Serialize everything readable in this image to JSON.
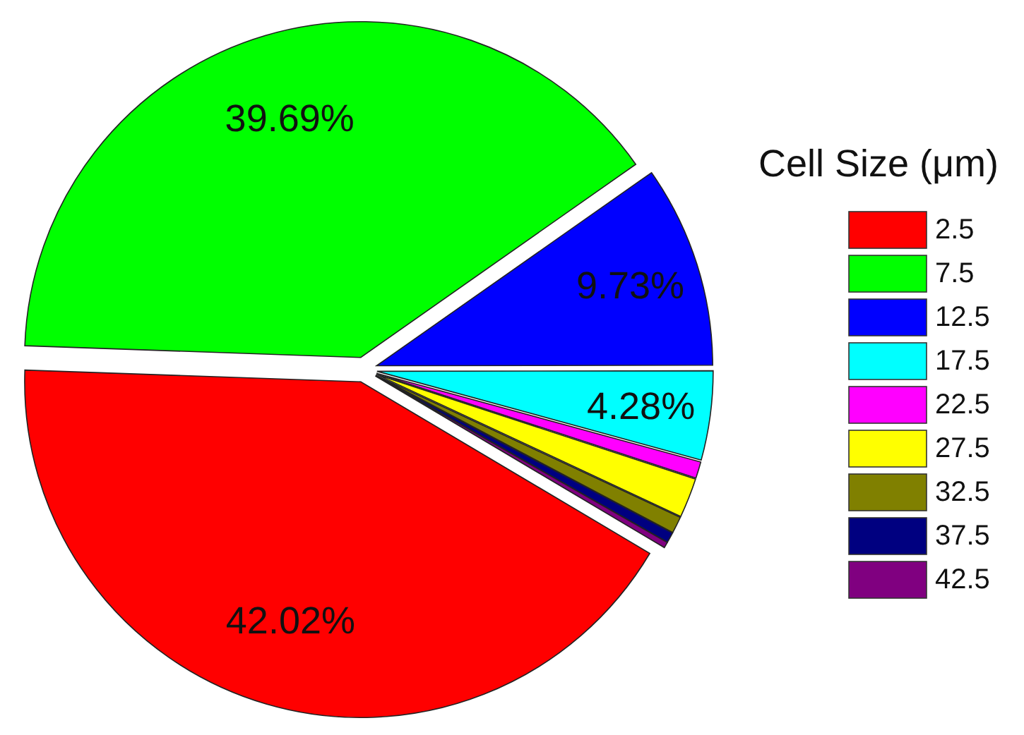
{
  "chart_data": {
    "type": "pie",
    "legend_title": "Cell Size (μm)",
    "legend": "right",
    "categories": [
      "2.5",
      "7.5",
      "12.5",
      "17.5",
      "22.5",
      "27.5",
      "32.5",
      "37.5",
      "42.5"
    ],
    "values": [
      42.02,
      39.69,
      9.73,
      4.28,
      0.8,
      1.9,
      0.8,
      0.5,
      0.28
    ],
    "colors": [
      "#ff0000",
      "#00ff00",
      "#0000ff",
      "#00ffff",
      "#ff00ff",
      "#ffff00",
      "#808000",
      "#000080",
      "#800080"
    ],
    "value_labels": [
      "42.02%",
      "39.69%",
      "9.73%",
      "4.28%",
      null,
      null,
      null,
      null,
      null
    ]
  }
}
